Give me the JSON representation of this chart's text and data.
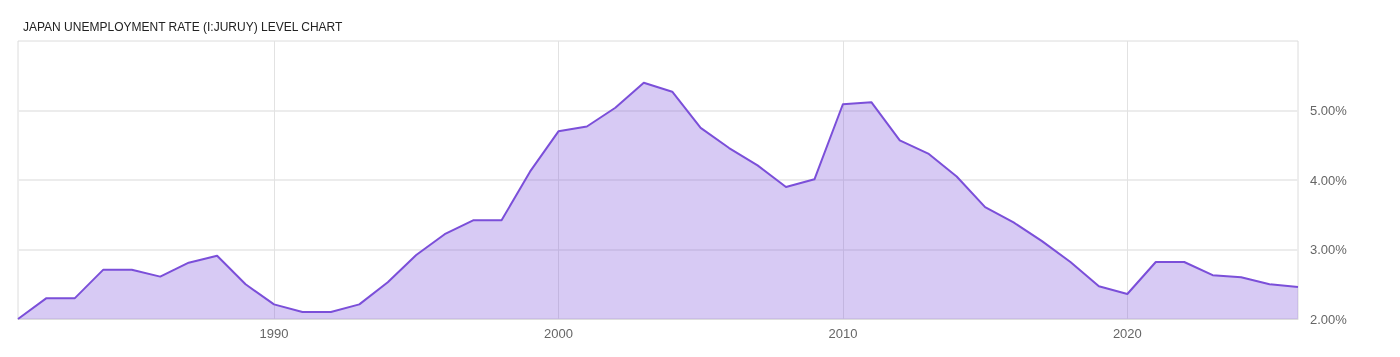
{
  "chart_data": {
    "type": "area",
    "title": "JAPAN UNEMPLOYMENT RATE (I:JURUY) LEVEL CHART",
    "x": [
      1981,
      1982,
      1983,
      1984,
      1985,
      1986,
      1987,
      1988,
      1989,
      1990,
      1991,
      1992,
      1993,
      1994,
      1995,
      1996,
      1997,
      1998,
      1999,
      2000,
      2001,
      2002,
      2003,
      2004,
      2005,
      2006,
      2007,
      2008,
      2009,
      2010,
      2011,
      2012,
      2013,
      2014,
      2015,
      2016,
      2017,
      2018,
      2019,
      2020,
      2021,
      2022,
      2023,
      2024,
      2025,
      2026
    ],
    "series": [
      {
        "color": "#7b4fd9",
        "values": [
          2.0,
          2.3,
          2.3,
          2.71,
          2.71,
          2.61,
          2.81,
          2.91,
          2.5,
          2.21,
          2.1,
          2.1,
          2.21,
          2.53,
          2.92,
          3.22,
          3.42,
          3.42,
          4.12,
          4.7,
          4.77,
          5.04,
          5.4,
          5.27,
          4.75,
          4.46,
          4.21,
          3.9,
          4.01,
          5.09,
          5.12,
          4.57,
          4.38,
          4.05,
          3.61,
          3.39,
          3.12,
          2.82,
          2.47,
          2.36,
          2.82,
          2.82,
          2.63,
          2.6,
          2.5,
          2.46
        ]
      }
    ],
    "xlim": [
      1981,
      2026
    ],
    "xticks": [
      1990,
      2000,
      2010,
      2020
    ],
    "ylim": [
      2,
      6
    ],
    "yticks": [
      {
        "value": 2,
        "label": "2.00%"
      },
      {
        "value": 3,
        "label": "3.00%"
      },
      {
        "value": 4,
        "label": "4.00%"
      },
      {
        "value": 5,
        "label": "5.00%"
      }
    ],
    "grid": true
  }
}
